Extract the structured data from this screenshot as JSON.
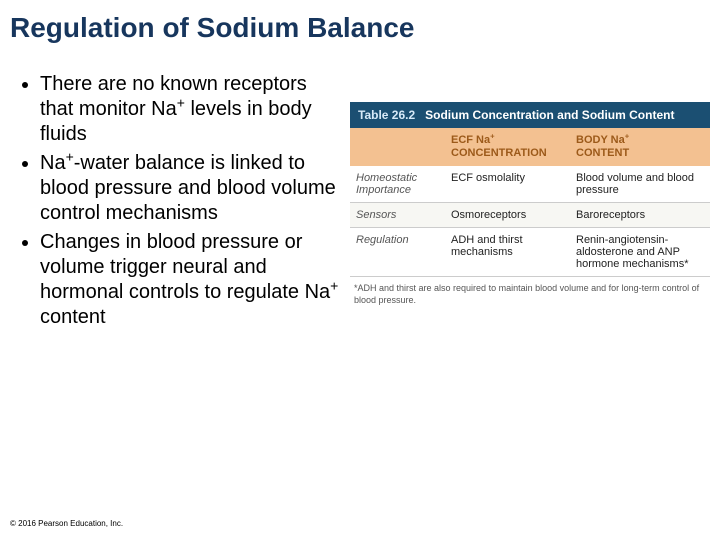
{
  "title": "Regulation of Sodium Balance",
  "bullets": [
    "There are no known receptors that monitor Na+ levels in body fluids",
    "Na+-water balance is linked to blood pressure and blood volume control mechanisms",
    "Changes in blood pressure or volume trigger neural and hormonal controls to regulate Na+ content"
  ],
  "table": {
    "number": "Table 26.2",
    "title": "Sodium Concentration and Sodium Content",
    "header_bg": "#1b4f72",
    "subhead_bg": "#f3c191",
    "col_headers": [
      "",
      "ECF Na+ CONCENTRATION",
      "BODY Na+ CONTENT"
    ],
    "rows": [
      {
        "label": "Homeostatic Importance",
        "c1": "ECF osmolality",
        "c2": "Blood volume and blood pressure"
      },
      {
        "label": "Sensors",
        "c1": "Osmoreceptors",
        "c2": "Baroreceptors"
      },
      {
        "label": "Regulation",
        "c1": "ADH and thirst mechanisms",
        "c2": "Renin-angiotensin-aldosterone and ANP hormone mechanisms*"
      }
    ],
    "footnote": "*ADH and thirst are also required to maintain blood volume and for long-term control of blood pressure."
  },
  "copyright": "© 2016 Pearson Education, Inc."
}
